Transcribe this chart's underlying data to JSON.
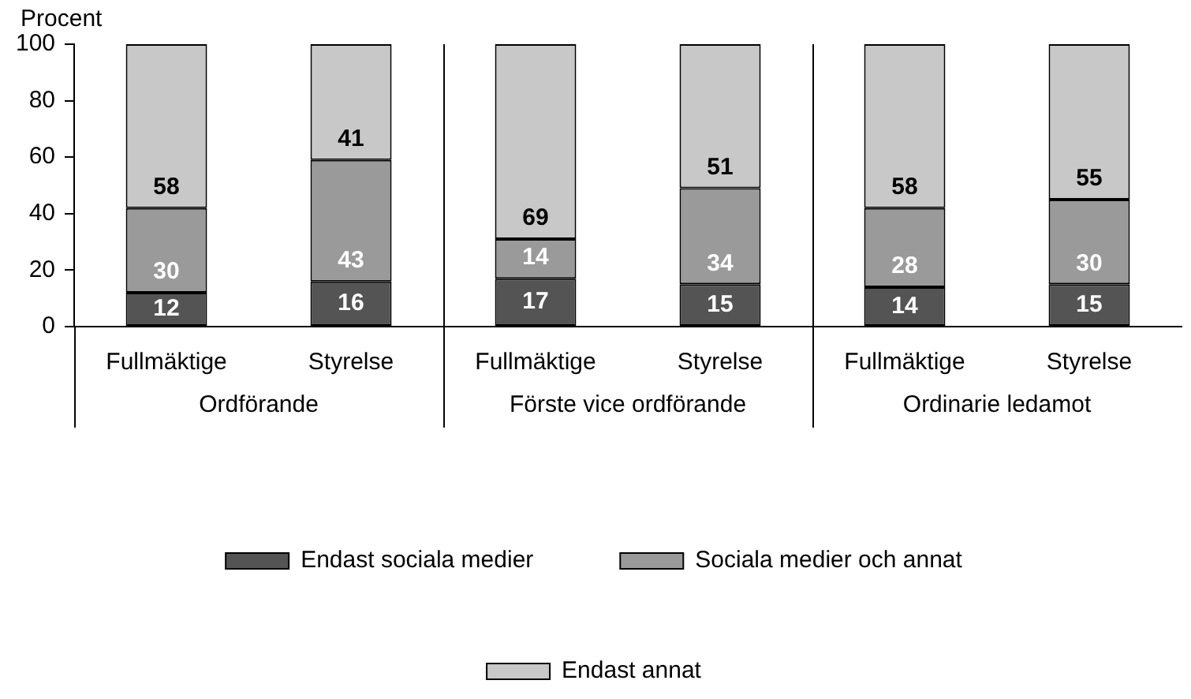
{
  "chart_data": {
    "type": "bar",
    "stacked": true,
    "ylabel": "Procent",
    "categories": [
      "Fullmäktige",
      "Styrelse",
      "Fullmäktige",
      "Styrelse",
      "Fullmäktige",
      "Styrelse"
    ],
    "annotations": [
      "Ordförande",
      "Förste vice ordförande",
      "Ordinarie ledamot"
    ],
    "series": [
      {
        "name": "Endast sociala medier",
        "color": "#545454",
        "values": [
          12,
          16,
          17,
          15,
          14,
          15
        ]
      },
      {
        "name": "Sociala medier och annat",
        "color": "#9a9a9a",
        "values": [
          30,
          43,
          14,
          34,
          28,
          30
        ]
      },
      {
        "name": "Endast annat",
        "color": "#c8c8c8",
        "values": [
          58,
          41,
          69,
          51,
          58,
          55
        ]
      }
    ],
    "ylim": [
      0,
      100
    ],
    "yticks": [
      0,
      20,
      40,
      60,
      80,
      100
    ],
    "data_labels": true,
    "legend": "bottom"
  }
}
